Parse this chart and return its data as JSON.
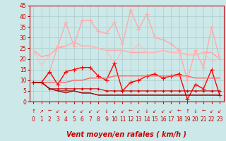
{
  "x": [
    0,
    1,
    2,
    3,
    4,
    5,
    6,
    7,
    8,
    9,
    10,
    11,
    12,
    13,
    14,
    15,
    16,
    17,
    18,
    19,
    20,
    21,
    22,
    23
  ],
  "series": [
    {
      "values": [
        9,
        9,
        14,
        26,
        37,
        26,
        38,
        38,
        33,
        32,
        37,
        27,
        43,
        34,
        41,
        30,
        29,
        27,
        24,
        10,
        24,
        16,
        35,
        20
      ],
      "color": "#ffaaaa",
      "marker": "+",
      "markersize": 4,
      "linewidth": 1.0
    },
    {
      "values": [
        24,
        21,
        22,
        25,
        26,
        28,
        26,
        26,
        25,
        24,
        24,
        24,
        23,
        23,
        23,
        23,
        24,
        23,
        23,
        22,
        22,
        23,
        23,
        20
      ],
      "color": "#ffaaaa",
      "marker": null,
      "markersize": 0,
      "linewidth": 1.2
    },
    {
      "values": [
        24,
        17,
        22,
        26,
        26,
        28,
        26,
        26,
        25,
        24,
        18,
        24,
        23,
        27,
        23,
        23,
        24,
        23,
        23,
        22,
        22,
        23,
        19,
        20
      ],
      "color": "#ffbbbb",
      "marker": null,
      "markersize": 0,
      "linewidth": 0.8
    },
    {
      "values": [
        9,
        9,
        14,
        8,
        14,
        15,
        16,
        16,
        12,
        10,
        18,
        5,
        9,
        10,
        12,
        13,
        11,
        12,
        13,
        1,
        8,
        6,
        15,
        3
      ],
      "color": "#ff0000",
      "marker": "+",
      "markersize": 4,
      "linewidth": 1.0
    },
    {
      "values": [
        9,
        9,
        9,
        9,
        9,
        10,
        10,
        11,
        11,
        11,
        12,
        12,
        12,
        12,
        12,
        12,
        12,
        12,
        12,
        12,
        11,
        11,
        11,
        11
      ],
      "color": "#ff6666",
      "marker": null,
      "markersize": 0,
      "linewidth": 1.0
    },
    {
      "values": [
        9,
        9,
        6,
        6,
        6,
        6,
        6,
        6,
        6,
        5,
        5,
        5,
        5,
        5,
        5,
        5,
        5,
        5,
        5,
        5,
        5,
        5,
        5,
        5
      ],
      "color": "#cc0000",
      "marker": "+",
      "markersize": 3,
      "linewidth": 0.8
    },
    {
      "values": [
        9,
        9,
        6,
        5,
        5,
        5,
        4,
        4,
        3,
        3,
        3,
        3,
        3,
        3,
        3,
        3,
        3,
        3,
        3,
        3,
        3,
        3,
        3,
        3
      ],
      "color": "#880000",
      "marker": null,
      "markersize": 0,
      "linewidth": 0.8
    },
    {
      "values": [
        9,
        9,
        6,
        5,
        4,
        5,
        4,
        4,
        3,
        3,
        3,
        3,
        3,
        3,
        3,
        3,
        3,
        3,
        3,
        3,
        3,
        3,
        3,
        3
      ],
      "color": "#aa0000",
      "marker": null,
      "markersize": 0,
      "linewidth": 0.8
    }
  ],
  "wind_arrows": [
    "↑",
    "↗",
    "←",
    "↙",
    "↙",
    "↙",
    "↙",
    "↙",
    "↙",
    "↓",
    "↙",
    "↙",
    "←",
    "↙",
    "↓",
    "↙",
    "↙",
    "↙",
    "←",
    "↑",
    "↓",
    "←",
    "↙",
    "↙"
  ],
  "xlim": [
    -0.5,
    23.5
  ],
  "ylim": [
    0,
    45
  ],
  "yticks": [
    0,
    5,
    10,
    15,
    20,
    25,
    30,
    35,
    40,
    45
  ],
  "xticks": [
    0,
    1,
    2,
    3,
    4,
    5,
    6,
    7,
    8,
    9,
    10,
    11,
    12,
    13,
    14,
    15,
    16,
    17,
    18,
    19,
    20,
    21,
    22,
    23
  ],
  "xlabel": "Vent moyen/en rafales ( km/h )",
  "xlabel_fontsize": 7,
  "tick_fontsize": 5.5,
  "arrow_fontsize": 5,
  "background_color": "#cce8e8",
  "grid_color": "#aacccc",
  "red_color": "#cc0000"
}
